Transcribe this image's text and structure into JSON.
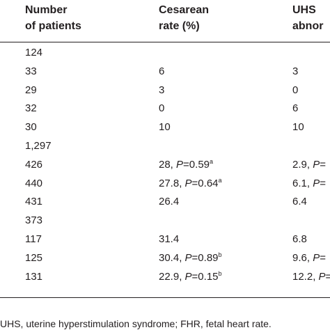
{
  "table": {
    "headers": {
      "col1_line1": "Number",
      "col1_line2": "of patients",
      "col2_line1": "Cesarean",
      "col2_line2": "rate (%)",
      "col3_line1": "UHS",
      "col3_line2": "abnor"
    },
    "rows": [
      {
        "n": "124",
        "cesarean": "",
        "cesarean_p": "",
        "cesarean_sup": "",
        "uhs": "",
        "uhs_p": ""
      },
      {
        "n": "33",
        "cesarean": "6",
        "cesarean_p": "",
        "cesarean_sup": "",
        "uhs": "3",
        "uhs_p": ""
      },
      {
        "n": "29",
        "cesarean": "3",
        "cesarean_p": "",
        "cesarean_sup": "",
        "uhs": "0",
        "uhs_p": ""
      },
      {
        "n": "32",
        "cesarean": "0",
        "cesarean_p": "",
        "cesarean_sup": "",
        "uhs": "6",
        "uhs_p": ""
      },
      {
        "n": "30",
        "cesarean": "10",
        "cesarean_p": "",
        "cesarean_sup": "",
        "uhs": "10",
        "uhs_p": ""
      },
      {
        "n": "1,297",
        "cesarean": "",
        "cesarean_p": "",
        "cesarean_sup": "",
        "uhs": "",
        "uhs_p": ""
      },
      {
        "n": "426",
        "cesarean": "28, ",
        "cesarean_p": "=0.59",
        "cesarean_sup": "a",
        "uhs": "2.9, ",
        "uhs_p": "="
      },
      {
        "n": "440",
        "cesarean": "27.8, ",
        "cesarean_p": "=0.64",
        "cesarean_sup": "a",
        "uhs": "6.1, ",
        "uhs_p": "="
      },
      {
        "n": "431",
        "cesarean": "26.4",
        "cesarean_p": "",
        "cesarean_sup": "",
        "uhs": "6.4",
        "uhs_p": ""
      },
      {
        "n": "373",
        "cesarean": "",
        "cesarean_p": "",
        "cesarean_sup": "",
        "uhs": "",
        "uhs_p": ""
      },
      {
        "n": "117",
        "cesarean": "31.4",
        "cesarean_p": "",
        "cesarean_sup": "",
        "uhs": "6.8",
        "uhs_p": ""
      },
      {
        "n": "125",
        "cesarean": "30.4, ",
        "cesarean_p": "=0.89",
        "cesarean_sup": "b",
        "uhs": "9.6, ",
        "uhs_p": "="
      },
      {
        "n": "131",
        "cesarean": "22.9, ",
        "cesarean_p": "=0.15",
        "cesarean_sup": "b",
        "uhs": "12.2, ",
        "uhs_p": "="
      }
    ],
    "p_letter": "P"
  },
  "footnote": "UHS, uterine hyperstimulation syndrome; FHR, fetal heart rate."
}
